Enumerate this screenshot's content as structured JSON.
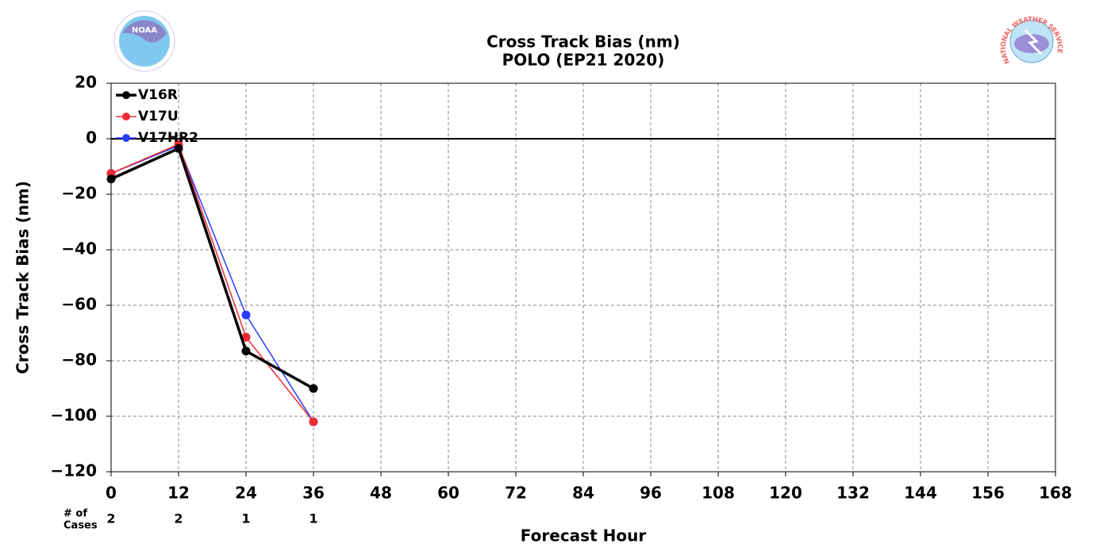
{
  "chart_data": {
    "type": "line",
    "title": "Cross Track Bias (nm)",
    "subtitle": "POLO (EP21 2020)",
    "xlabel": "Forecast Hour",
    "ylabel": "Cross Track Bias (nm)",
    "x": [
      0,
      12,
      24,
      36
    ],
    "series": [
      {
        "name": "V16R",
        "color": "#000000",
        "linewidth": 3.5,
        "values": [
          -14.5,
          -3.5,
          -76.5,
          -90
        ]
      },
      {
        "name": "V17U",
        "color": "#ee2a35",
        "linewidth": 1.5,
        "values": [
          -12.5,
          -2,
          -71.5,
          -102
        ]
      },
      {
        "name": "V17HR2",
        "color": "#2a3cff",
        "linewidth": 1.5,
        "values": [
          -12.5,
          -2.5,
          -63.5,
          -102
        ]
      }
    ],
    "xlim": [
      0,
      168
    ],
    "xticks": [
      0,
      12,
      24,
      36,
      48,
      60,
      72,
      84,
      96,
      108,
      120,
      132,
      144,
      156,
      168
    ],
    "ylim": [
      -120,
      20
    ],
    "yticks": [
      {
        "value": -120,
        "label": "−120"
      },
      {
        "value": -100,
        "label": "−100"
      },
      {
        "value": -80,
        "label": "−80"
      },
      {
        "value": -60,
        "label": "−60"
      },
      {
        "value": -40,
        "label": "−40"
      },
      {
        "value": -20,
        "label": "−20"
      },
      0,
      20
    ],
    "grid": true,
    "legend": "upper left",
    "cases_label": [
      "# of",
      "Cases"
    ],
    "cases": [
      2,
      2,
      1,
      1
    ],
    "logos": [
      "NOAA",
      "NATIONAL WEATHER SERVICE"
    ]
  }
}
